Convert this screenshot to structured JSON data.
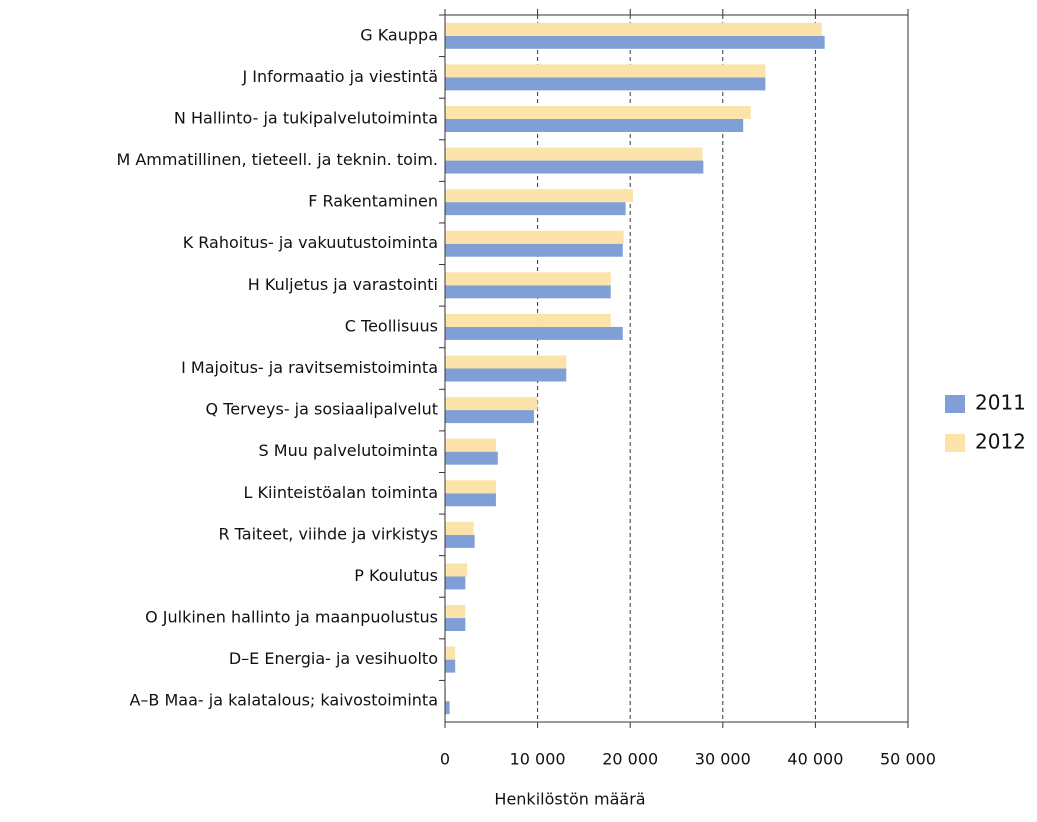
{
  "chart_data": {
    "type": "barh",
    "xlabel": "Henkilöstön määrä",
    "categories": [
      "G  Kauppa",
      "J Informaatio ja viestintä",
      "N Hallinto- ja tukipalvelutoiminta",
      "M  Ammatillinen, tieteell. ja teknin. toim.",
      "F Rakentaminen",
      "K Rahoitus- ja vakuutustoiminta",
      "H Kuljetus ja varastointi",
      "C Teollisuus",
      "I Majoitus- ja ravitsemistoiminta",
      "Q Terveys- ja sosiaalipalvelut",
      "S Muu palvelutoiminta",
      "L Kiinteistöalan toiminta",
      "R Taiteet, viihde ja virkistys",
      "P Koulutus",
      "O  Julkinen hallinto ja maanpuolustus",
      "D–E Energia- ja vesihuolto",
      "A–B Maa- ja kalatalous; kaivostoiminta"
    ],
    "series": [
      {
        "name": "2011",
        "color": "#7f9fd6",
        "values": [
          41000,
          34600,
          32200,
          27900,
          19500,
          19200,
          17900,
          19200,
          13100,
          9600,
          5700,
          5500,
          3200,
          2200,
          2200,
          1100,
          500
        ]
      },
      {
        "name": "2012",
        "color": "#fbe3aa",
        "values": [
          40700,
          34600,
          33000,
          27800,
          20300,
          19300,
          17900,
          17900,
          13100,
          10000,
          5500,
          5500,
          3100,
          2400,
          2200,
          1100,
          100
        ]
      }
    ],
    "xlim": [
      0,
      50000
    ],
    "xticks": [
      0,
      {
        "value": 10000,
        "label": "10 000"
      },
      {
        "value": 20000,
        "label": "20 000"
      },
      {
        "value": 30000,
        "label": "30 000"
      },
      {
        "value": 40000,
        "label": "40 000"
      },
      {
        "value": 50000,
        "label": "50 000"
      }
    ],
    "grid": true,
    "legend": "right"
  }
}
